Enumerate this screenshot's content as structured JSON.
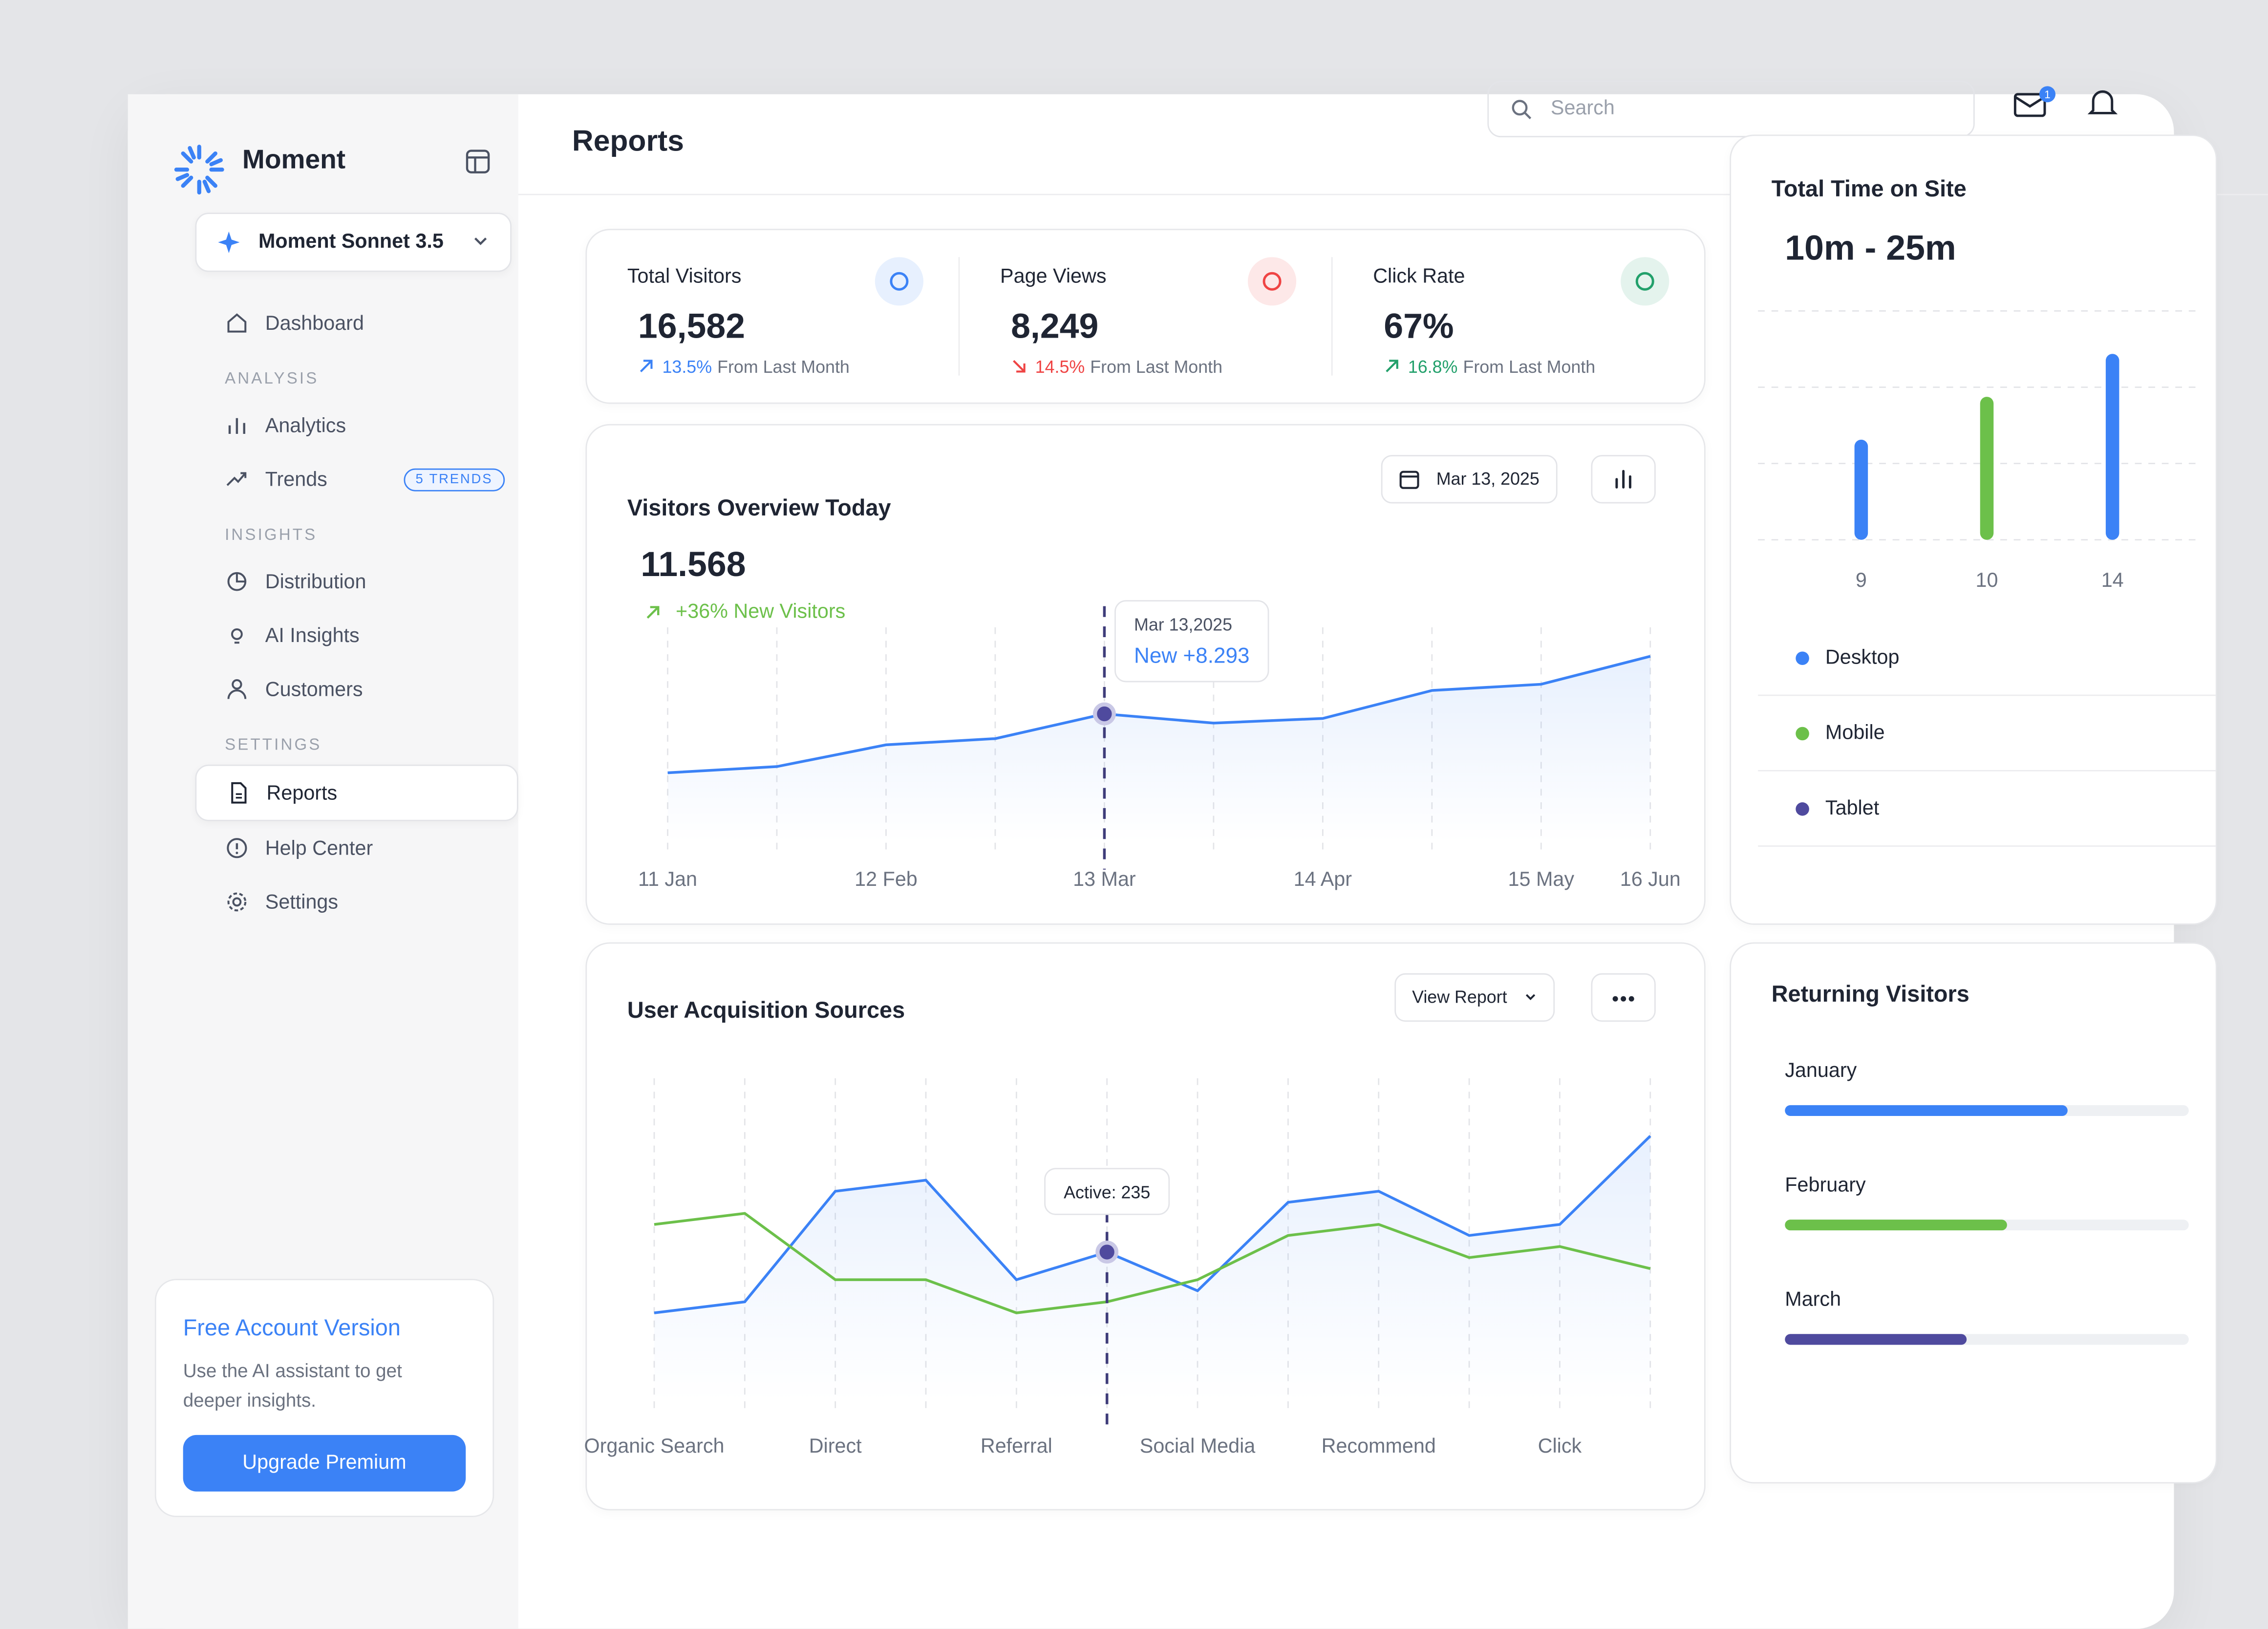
{
  "header": {
    "title": "Reports",
    "search": "Search",
    "mail_badge": "1"
  },
  "sidebar": {
    "brand": "Moment",
    "model": "Moment Sonnet 3.5",
    "nav": [
      {
        "label": "Dashboard"
      },
      {
        "heading": "ANALYSIS"
      },
      {
        "label": "Analytics"
      },
      {
        "label": "Trends",
        "badge": "5 TRENDS"
      },
      {
        "heading": "INSIGHTS"
      },
      {
        "label": "Distribution"
      },
      {
        "label": "AI Insights"
      },
      {
        "label": "Customers"
      },
      {
        "heading": "SETTINGS"
      },
      {
        "label": "Reports",
        "active": true
      },
      {
        "label": "Help Center"
      },
      {
        "label": "Settings"
      }
    ],
    "promo": {
      "title": "Free Account Version",
      "text": "Use the AI assistant to get deeper insights.",
      "button": "Upgrade Premium"
    }
  },
  "stats": [
    {
      "label": "Total Visitors",
      "value": "16,582",
      "change": "13.5%",
      "note": "From Last Month",
      "trend": "up",
      "color": "#3b82f6"
    },
    {
      "label": "Page Views",
      "value": "8,249",
      "change": "14.5%",
      "note": "From Last Month",
      "trend": "down",
      "color": "#ef4444"
    },
    {
      "label": "Click Rate",
      "value": "67%",
      "change": "16.8%",
      "note": "From Last Month",
      "trend": "up",
      "color": "#22a06b"
    }
  ],
  "chart_data": [
    {
      "type": "line",
      "title": "Visitors Overview Today",
      "date": "Mar 13, 2025",
      "big_value": "11.568",
      "subtitle": "+36% New Visitors",
      "categories": [
        "11 Jan",
        null,
        "12 Feb",
        null,
        "13 Mar",
        null,
        "14 Apr",
        null,
        "15 May",
        "16 Jun"
      ],
      "series": [
        {
          "color": "#3b82f6",
          "area": true,
          "values": [
            4500,
            4900,
            6300,
            6700,
            8293,
            7700,
            8000,
            9800,
            10200,
            12000
          ]
        }
      ],
      "ylim": [
        0,
        13000
      ],
      "tooltip": {
        "title": "Mar 13,2025",
        "text": "New +8.293"
      }
    },
    {
      "type": "line",
      "title": "User Acquisition Sources",
      "button": "View Report",
      "categories": [
        "Organic Search",
        null,
        "Direct",
        null,
        "Referral",
        null,
        "Social Media",
        null,
        "Recommend",
        null,
        "Click",
        null
      ],
      "series": [
        {
          "color": "#3b82f6",
          "area": true,
          "values": [
            180,
            190,
            290,
            300,
            210,
            235,
            200,
            280,
            290,
            250,
            260,
            340
          ]
        },
        {
          "color": "#6cc04a",
          "values": [
            260,
            270,
            210,
            210,
            180,
            190,
            210,
            250,
            260,
            230,
            240,
            220
          ]
        }
      ],
      "ylim": [
        100,
        380
      ],
      "tooltip": {
        "text": "Active: 235"
      }
    },
    {
      "type": "bar",
      "title": "Total Time on Site",
      "subtitle": "10m - 25m",
      "categories": [
        "9",
        "10",
        "14"
      ],
      "series": [
        {
          "name": "Desktop",
          "color": "#3b82f6",
          "values": [
            35,
            null,
            65
          ]
        },
        {
          "name": "Mobile",
          "color": "#6cc04a",
          "values": [
            null,
            50,
            null
          ]
        },
        {
          "name": "Tablet",
          "color": "#4f4a9e",
          "values": [
            null,
            null,
            null
          ]
        }
      ],
      "ylim": [
        0,
        80
      ]
    },
    {
      "type": "hbar",
      "title": "Returning Visitors",
      "categories": [
        "January",
        "February",
        "March"
      ],
      "values": [
        70,
        55,
        45
      ],
      "colors": [
        "#3b82f6",
        "#6cc04a",
        "#4f4a9e"
      ],
      "xlim": [
        0,
        100
      ]
    }
  ]
}
